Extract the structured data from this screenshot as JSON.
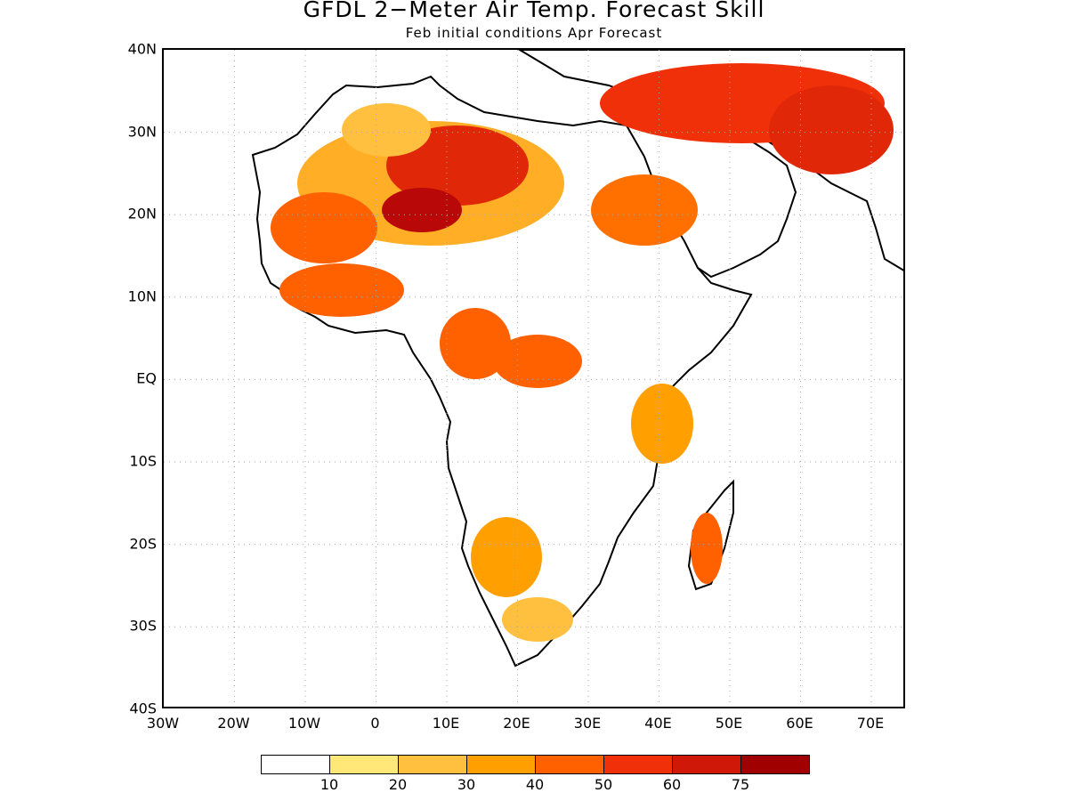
{
  "title": "GFDL 2−Meter Air Temp. Forecast Skill",
  "subtitle": "Feb initial conditions  Apr Forecast",
  "lat_labels": [
    "40N",
    "30N",
    "20N",
    "10N",
    "EQ",
    "10S",
    "20S",
    "30S",
    "40S"
  ],
  "lon_labels": [
    "30W",
    "20W",
    "10W",
    "0",
    "10E",
    "20E",
    "30E",
    "40E",
    "50E",
    "60E",
    "70E"
  ],
  "colorbar": {
    "colors": [
      "#ffffff",
      "#ffe878",
      "#ffc040",
      "#ffa000",
      "#ff6000",
      "#f03008",
      "#d01808",
      "#a00000"
    ],
    "labels": [
      "10",
      "20",
      "30",
      "40",
      "50",
      "60",
      "75"
    ]
  }
}
